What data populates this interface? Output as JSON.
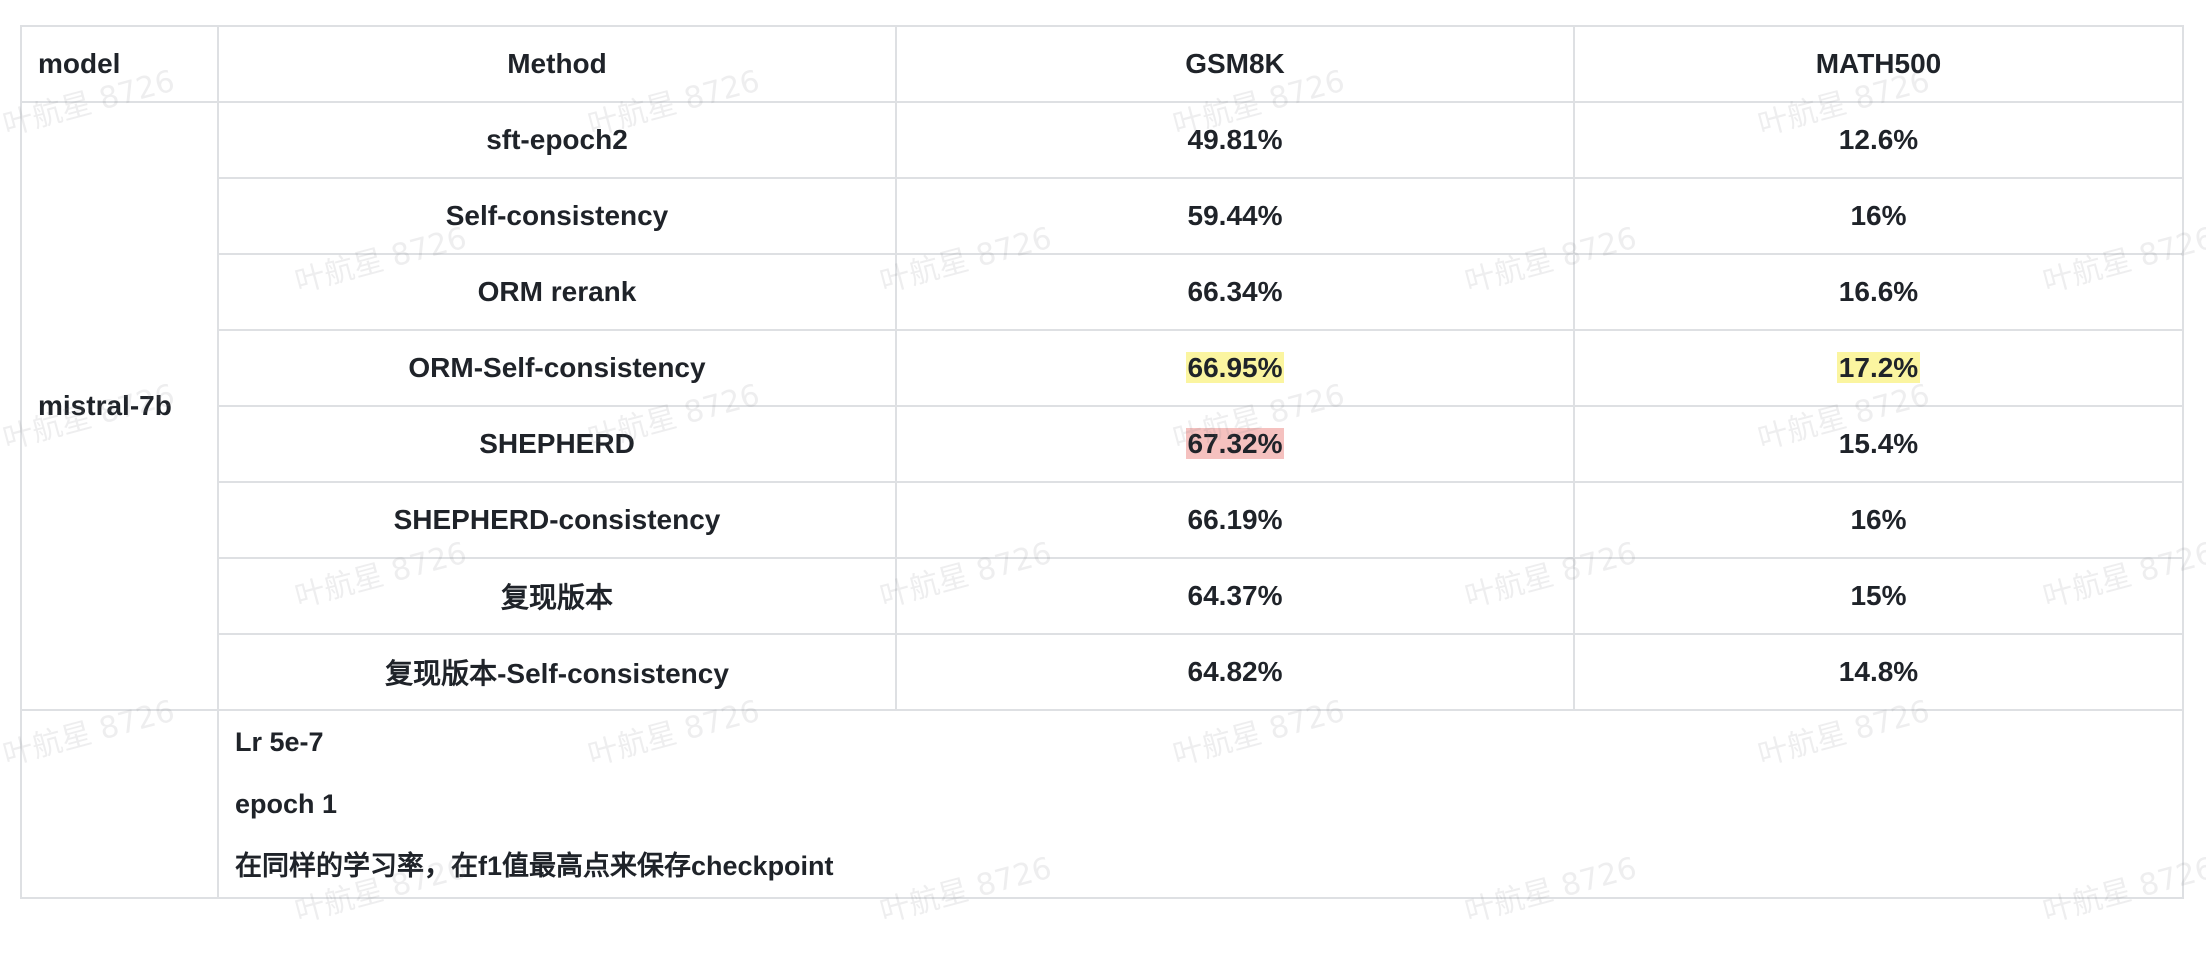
{
  "table": {
    "headers": {
      "model": "model",
      "method": "Method",
      "gsm8k": "GSM8K",
      "math500": "MATH500"
    },
    "model_name": "mistral-7b",
    "rows": [
      {
        "method": "sft-epoch2",
        "gsm8k": "49.81%",
        "math500": "12.6%"
      },
      {
        "method": "Self-consistency",
        "gsm8k": "59.44%",
        "math500": "16%"
      },
      {
        "method": "ORM rerank",
        "gsm8k": "66.34%",
        "math500": "16.6%"
      },
      {
        "method": "ORM-Self-consistency",
        "gsm8k": "66.95%",
        "math500": "17.2%",
        "gsm8k_highlight": "#fbf5a0",
        "math500_highlight": "#fbf5a0"
      },
      {
        "method": "SHEPHERD",
        "gsm8k": "67.32%",
        "math500": "15.4%",
        "gsm8k_highlight": "#f5c1bf"
      },
      {
        "method": "SHEPHERD-consistency",
        "gsm8k": "66.19%",
        "math500": "16%"
      },
      {
        "method": "复现版本",
        "gsm8k": "64.37%",
        "math500": "15%"
      },
      {
        "method": "复现版本-Self-consistency",
        "gsm8k": "64.82%",
        "math500": "14.8%"
      }
    ]
  },
  "notes": {
    "lr": "Lr 5e-7",
    "epoch": "epoch 1",
    "description": "在同样的学习率，在f1值最高点来保存checkpoint"
  },
  "watermark": {
    "text": "叶航星 8726"
  }
}
